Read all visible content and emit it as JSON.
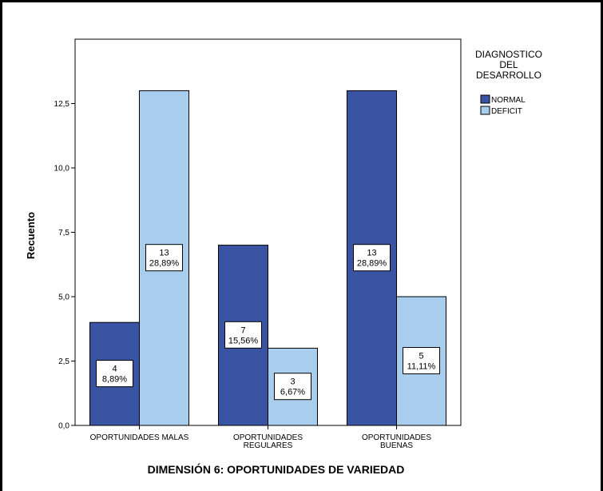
{
  "chart_data": {
    "type": "bar",
    "categories": [
      [
        "OPORTUNIDADES MALAS"
      ],
      [
        "OPORTUNIDADES",
        "REGULARES"
      ],
      [
        "OPORTUNIDADES",
        "BUENAS"
      ]
    ],
    "series": [
      {
        "name": "NORMAL",
        "color": "#3a54a4",
        "values": [
          4,
          7,
          13
        ],
        "labels": [
          "8,89%",
          "15,56%",
          "28,89%"
        ]
      },
      {
        "name": "DEFICIT",
        "color": "#a9cdec",
        "values": [
          13,
          3,
          5
        ],
        "labels": [
          "28,89%",
          "6,67%",
          "11,11%"
        ]
      }
    ],
    "ylabel": "Recuento",
    "xlabel": "DIMENSIÓN 6: OPORTUNIDADES DE VARIEDAD",
    "ylim": [
      0,
      15
    ],
    "yticks": [
      0,
      2.5,
      5,
      7.5,
      10,
      12.5
    ],
    "ytick_labels": [
      "0,0",
      "2,5",
      "5,0",
      "7,5",
      "10,0",
      "12,5"
    ],
    "legend": {
      "title_lines": [
        "DIAGNOSTICO",
        "DEL",
        "DESARROLLO"
      ],
      "placement": "right"
    },
    "grid": false
  }
}
